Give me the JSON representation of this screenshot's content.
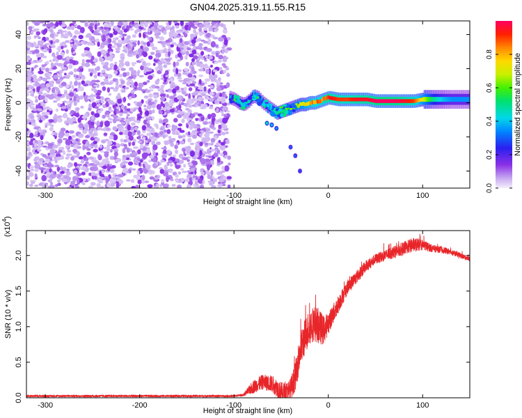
{
  "title": "GN04.2025.319.11.55.R15",
  "colors": {
    "snr_line": "#e8262a",
    "spectrogram_low": "#c6a8f0",
    "spectrogram_high": "#ff0000"
  },
  "chart_data": [
    {
      "type": "heatmap",
      "xlabel": "Height of straight line (km)",
      "ylabel": "Frequency (Hz)",
      "xlim": [
        -320,
        150
      ],
      "ylim": [
        -50,
        48
      ],
      "xticks": [
        -300,
        -200,
        -100,
        0,
        100
      ],
      "yticks": [
        -40,
        -20,
        0,
        20,
        40
      ],
      "colorbar": {
        "label": "Normalized spectral amplitude",
        "range": [
          0,
          1
        ],
        "ticks": [
          0.0,
          0.2,
          0.4,
          0.6,
          0.8
        ],
        "tick_labels": [
          "0.0",
          "0.2",
          "0.4",
          "0.6",
          "0.8"
        ]
      },
      "noise_region": {
        "x_range": [
          -320,
          -105
        ],
        "freq_range": [
          -50,
          48
        ],
        "amplitude": [
          0.0,
          0.12
        ]
      },
      "signal_track": [
        {
          "x": -105,
          "freq": 3,
          "amp": 0.35
        },
        {
          "x": -100,
          "freq": 2,
          "amp": 0.4
        },
        {
          "x": -95,
          "freq": 0,
          "amp": 0.45
        },
        {
          "x": -90,
          "freq": -1,
          "amp": 0.4
        },
        {
          "x": -85,
          "freq": 1,
          "amp": 0.45
        },
        {
          "x": -80,
          "freq": 4,
          "amp": 0.5
        },
        {
          "x": -75,
          "freq": 3,
          "amp": 0.45
        },
        {
          "x": -70,
          "freq": 0,
          "amp": 0.4
        },
        {
          "x": -65,
          "freq": -2,
          "amp": 0.4
        },
        {
          "x": -60,
          "freq": -4,
          "amp": 0.45
        },
        {
          "x": -55,
          "freq": -6,
          "amp": 0.5
        },
        {
          "x": -50,
          "freq": -5,
          "amp": 0.55
        },
        {
          "x": -45,
          "freq": -4,
          "amp": 0.55
        },
        {
          "x": -40,
          "freq": -3,
          "amp": 0.6
        },
        {
          "x": -35,
          "freq": -2,
          "amp": 0.65
        },
        {
          "x": -30,
          "freq": -1,
          "amp": 0.7
        },
        {
          "x": -25,
          "freq": -1,
          "amp": 0.75
        },
        {
          "x": -20,
          "freq": 0,
          "amp": 0.8
        },
        {
          "x": -15,
          "freq": 0,
          "amp": 0.85
        },
        {
          "x": -10,
          "freq": 1,
          "amp": 0.85
        },
        {
          "x": -5,
          "freq": 2,
          "amp": 0.9
        },
        {
          "x": 0,
          "freq": 3,
          "amp": 0.95
        },
        {
          "x": 10,
          "freq": 2,
          "amp": 0.9
        },
        {
          "x": 20,
          "freq": 2,
          "amp": 0.9
        },
        {
          "x": 30,
          "freq": 2,
          "amp": 0.95
        },
        {
          "x": 40,
          "freq": 2,
          "amp": 0.95
        },
        {
          "x": 50,
          "freq": 1,
          "amp": 1.0
        },
        {
          "x": 60,
          "freq": 1,
          "amp": 1.0
        },
        {
          "x": 70,
          "freq": 1,
          "amp": 1.0
        },
        {
          "x": 80,
          "freq": 1,
          "amp": 0.95
        },
        {
          "x": 90,
          "freq": 1,
          "amp": 0.9
        },
        {
          "x": 100,
          "freq": 2,
          "amp": 0.7
        },
        {
          "x": 110,
          "freq": 2,
          "amp": 0.5
        },
        {
          "x": 120,
          "freq": 2,
          "amp": 0.4
        },
        {
          "x": 130,
          "freq": 2,
          "amp": 0.35
        },
        {
          "x": 140,
          "freq": 2,
          "amp": 0.35
        },
        {
          "x": 150,
          "freq": 2,
          "amp": 0.35
        }
      ],
      "secondary_track": [
        {
          "x": -65,
          "freq": -12,
          "amp": 0.45
        },
        {
          "x": -60,
          "freq": -13,
          "amp": 0.4
        },
        {
          "x": -55,
          "freq": -15,
          "amp": 0.35
        },
        {
          "x": -40,
          "freq": -26,
          "amp": 0.3
        },
        {
          "x": -35,
          "freq": -31,
          "amp": 0.3
        },
        {
          "x": -30,
          "freq": -40,
          "amp": 0.28
        }
      ]
    },
    {
      "type": "line",
      "xlabel": "Height of straight line (km)",
      "ylabel": "SNR (10 * v/v)",
      "multiplier_label": "(x10",
      "multiplier_exp": "4",
      "multiplier_close": ")",
      "xlim": [
        -320,
        150
      ],
      "ylim": [
        0,
        23500
      ],
      "xticks": [
        -300,
        -200,
        -100,
        0,
        100
      ],
      "yticks": [
        0,
        5000,
        10000,
        15000,
        20000
      ],
      "ytick_labels": [
        "0.0",
        "0.5",
        "1.0",
        "1.5",
        "2.0"
      ],
      "series": [
        {
          "name": "SNR",
          "anchors": [
            {
              "x": -320,
              "y": 250
            },
            {
              "x": -100,
              "y": 250
            },
            {
              "x": -90,
              "y": 400
            },
            {
              "x": -80,
              "y": 1500
            },
            {
              "x": -70,
              "y": 2200
            },
            {
              "x": -60,
              "y": 2000
            },
            {
              "x": -50,
              "y": 900
            },
            {
              "x": -45,
              "y": 700
            },
            {
              "x": -40,
              "y": 1200
            },
            {
              "x": -35,
              "y": 3000
            },
            {
              "x": -30,
              "y": 6500
            },
            {
              "x": -25,
              "y": 8500
            },
            {
              "x": -20,
              "y": 10000
            },
            {
              "x": -15,
              "y": 10500
            },
            {
              "x": -10,
              "y": 10000
            },
            {
              "x": -5,
              "y": 9500
            },
            {
              "x": 0,
              "y": 10500
            },
            {
              "x": 10,
              "y": 13000
            },
            {
              "x": 20,
              "y": 15500
            },
            {
              "x": 30,
              "y": 17000
            },
            {
              "x": 40,
              "y": 18500
            },
            {
              "x": 50,
              "y": 19500
            },
            {
              "x": 60,
              "y": 20000
            },
            {
              "x": 70,
              "y": 20500
            },
            {
              "x": 80,
              "y": 21000
            },
            {
              "x": 90,
              "y": 21500
            },
            {
              "x": 100,
              "y": 21500
            },
            {
              "x": 110,
              "y": 21000
            },
            {
              "x": 120,
              "y": 20800
            },
            {
              "x": 130,
              "y": 20500
            },
            {
              "x": 140,
              "y": 20000
            },
            {
              "x": 150,
              "y": 19500
            }
          ],
          "noise_amplitude": [
            {
              "x": -320,
              "a": 150
            },
            {
              "x": -90,
              "a": 150
            },
            {
              "x": -80,
              "a": 900
            },
            {
              "x": -50,
              "a": 1300
            },
            {
              "x": -40,
              "a": 1500
            },
            {
              "x": -30,
              "a": 2500
            },
            {
              "x": -10,
              "a": 2500
            },
            {
              "x": 0,
              "a": 1500
            },
            {
              "x": 20,
              "a": 1000
            },
            {
              "x": 50,
              "a": 700
            },
            {
              "x": 90,
              "a": 1000
            },
            {
              "x": 110,
              "a": 500
            },
            {
              "x": 150,
              "a": 300
            }
          ]
        }
      ]
    }
  ]
}
